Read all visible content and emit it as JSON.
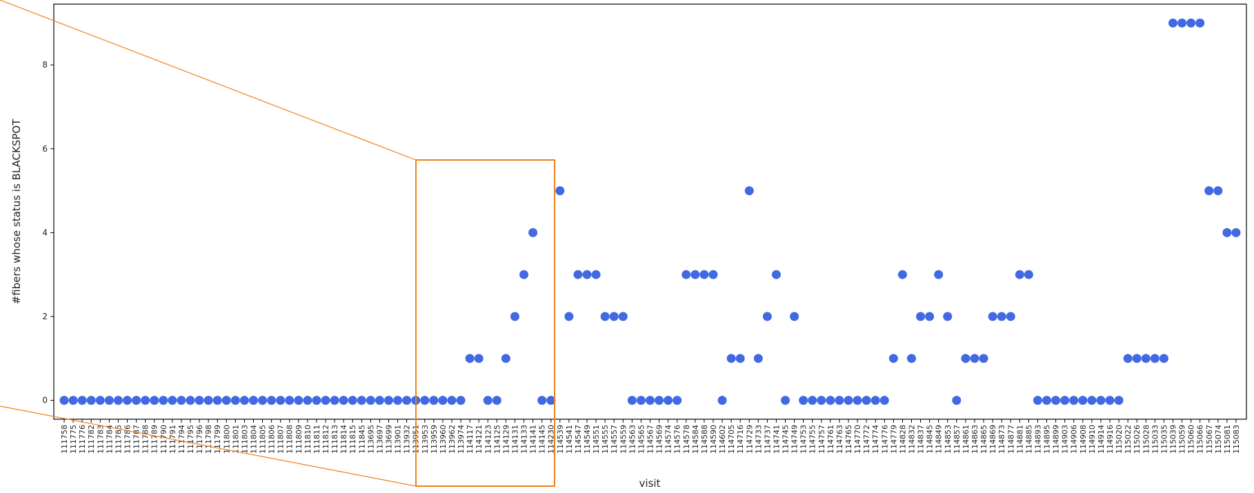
{
  "chart_data": {
    "type": "scatter",
    "x_label": "visit",
    "y_label": "#fibers whose status is BLACKSPOT",
    "color": "#4169e1",
    "ylim": [
      -0.45,
      9.45
    ],
    "yticks": [
      0,
      2,
      4,
      6,
      8
    ],
    "categories": [
      "111758",
      "111775",
      "111776",
      "111782",
      "111783",
      "111784",
      "111785",
      "111786",
      "111787",
      "111788",
      "111789",
      "111790",
      "111791",
      "111794",
      "111795",
      "111796",
      "111798",
      "111799",
      "111800",
      "111801",
      "111803",
      "111804",
      "111805",
      "111806",
      "111807",
      "111808",
      "111809",
      "111810",
      "111811",
      "111812",
      "111813",
      "111814",
      "111815",
      "111845",
      "113695",
      "113697",
      "113699",
      "113901",
      "113932",
      "113951",
      "113953",
      "113959",
      "113960",
      "113962",
      "113974",
      "114117",
      "114121",
      "114123",
      "114125",
      "114129",
      "114131",
      "114133",
      "114141",
      "114145",
      "114230",
      "114539",
      "114541",
      "114547",
      "114549",
      "114551",
      "114555",
      "114557",
      "114559",
      "114563",
      "114565",
      "114567",
      "114569",
      "114574",
      "114576",
      "114578",
      "114584",
      "114588",
      "114590",
      "114602",
      "114705",
      "114716",
      "114729",
      "114733",
      "114737",
      "114741",
      "114745",
      "114749",
      "114753",
      "114755",
      "114757",
      "114761",
      "114763",
      "114765",
      "114770",
      "114772",
      "114774",
      "114776",
      "114779",
      "114828",
      "114832",
      "114837",
      "114845",
      "114849",
      "114853",
      "114857",
      "114861",
      "114863",
      "114865",
      "114869",
      "114873",
      "114877",
      "114881",
      "114885",
      "114893",
      "114895",
      "114899",
      "114903",
      "114906",
      "114908",
      "114910",
      "114914",
      "114916",
      "115020",
      "115022",
      "115026",
      "115028",
      "115033",
      "115035",
      "115039",
      "115059",
      "115060",
      "115066",
      "115067",
      "115074",
      "115081",
      "115083"
    ],
    "values": [
      0,
      0,
      0,
      0,
      0,
      0,
      0,
      0,
      0,
      0,
      0,
      0,
      0,
      0,
      0,
      0,
      0,
      0,
      0,
      0,
      0,
      0,
      0,
      0,
      0,
      0,
      0,
      0,
      0,
      0,
      0,
      0,
      0,
      0,
      0,
      0,
      0,
      0,
      0,
      0,
      0,
      0,
      0,
      0,
      0,
      1,
      1,
      0,
      0,
      1,
      2,
      3,
      4,
      0,
      0,
      5,
      2,
      3,
      3,
      3,
      2,
      2,
      2,
      0,
      0,
      0,
      0,
      0,
      0,
      3,
      3,
      3,
      3,
      0,
      1,
      1,
      5,
      1,
      2,
      3,
      0,
      2,
      0,
      0,
      0,
      0,
      0,
      0,
      0,
      0,
      0,
      0,
      1,
      3,
      1,
      2,
      2,
      3,
      2,
      0,
      1,
      1,
      1,
      2,
      2,
      2,
      3,
      3,
      0,
      0,
      0,
      0,
      0,
      0,
      0,
      0,
      0,
      0,
      1,
      1,
      1,
      1,
      1,
      9,
      9,
      9,
      9,
      5,
      5,
      4,
      4
    ]
  }
}
